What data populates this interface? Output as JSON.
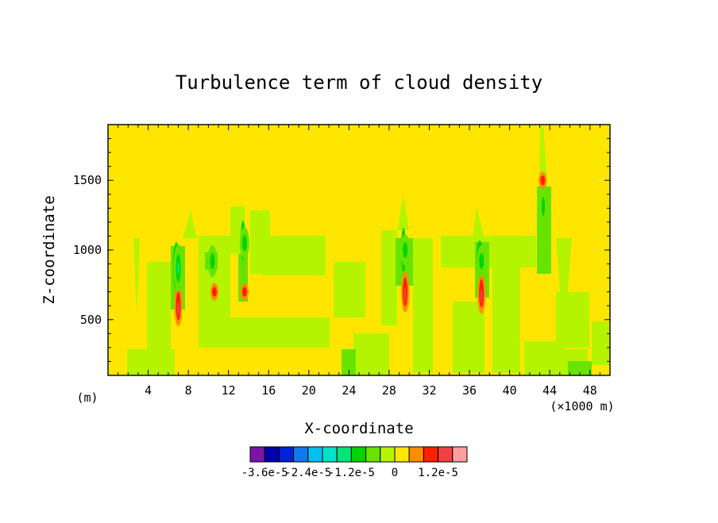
{
  "chart_data": {
    "type": "heatmap",
    "title": "Turbulence term of cloud density",
    "xlabel": "X-coordinate",
    "ylabel": "Z-coordinate",
    "x_unit": "(m)",
    "x_multiplier": "(×1000 m)",
    "xlim": [
      0,
      50
    ],
    "ylim": [
      100,
      1900
    ],
    "x_ticks": [
      "4",
      "8",
      "12",
      "16",
      "20",
      "24",
      "28",
      "32",
      "36",
      "40",
      "44",
      "48"
    ],
    "y_ticks": [
      "500",
      "1000",
      "1500"
    ],
    "background_level": "0",
    "colorbar": {
      "colors": [
        "#7b14a8",
        "#0000aa",
        "#0022d8",
        "#1378ea",
        "#00c0ee",
        "#00e2c8",
        "#00e67a",
        "#00d400",
        "#66e400",
        "#b4f400",
        "#ffe600",
        "#ff8c00",
        "#ff2000",
        "#f24040",
        "#ff9e9e"
      ],
      "tick_labels": [
        "-3.6e-5",
        "-2.4e-5",
        "-1.2e-5",
        "0",
        "1.2e-5"
      ],
      "tick_values": [
        -3.6e-05,
        -2.4e-05,
        -1.2e-05,
        0,
        1.2e-05
      ]
    },
    "features": [
      {
        "kind": "positive",
        "x": 7.0,
        "z": 600,
        "value": 1.2e-05
      },
      {
        "kind": "positive",
        "x": 10.6,
        "z": 700,
        "value": 6e-06
      },
      {
        "kind": "positive",
        "x": 13.6,
        "z": 700,
        "value": 6e-06
      },
      {
        "kind": "positive",
        "x": 29.6,
        "z": 700,
        "value": 1.2e-05
      },
      {
        "kind": "positive",
        "x": 37.2,
        "z": 690,
        "value": 1.2e-05
      },
      {
        "kind": "positive",
        "x": 43.3,
        "z": 1500,
        "value": 6e-06
      },
      {
        "kind": "negative",
        "x": 7.0,
        "z": 870,
        "value": -1.2e-05
      },
      {
        "kind": "negative",
        "x": 13.6,
        "z": 1050,
        "value": -6e-06
      },
      {
        "kind": "negative",
        "x": 29.6,
        "z": 1000,
        "value": -6e-06
      },
      {
        "kind": "negative",
        "x": 37.2,
        "z": 920,
        "value": -6e-06
      },
      {
        "kind": "negative",
        "x": 10.4,
        "z": 920,
        "value": -6e-06
      }
    ]
  }
}
